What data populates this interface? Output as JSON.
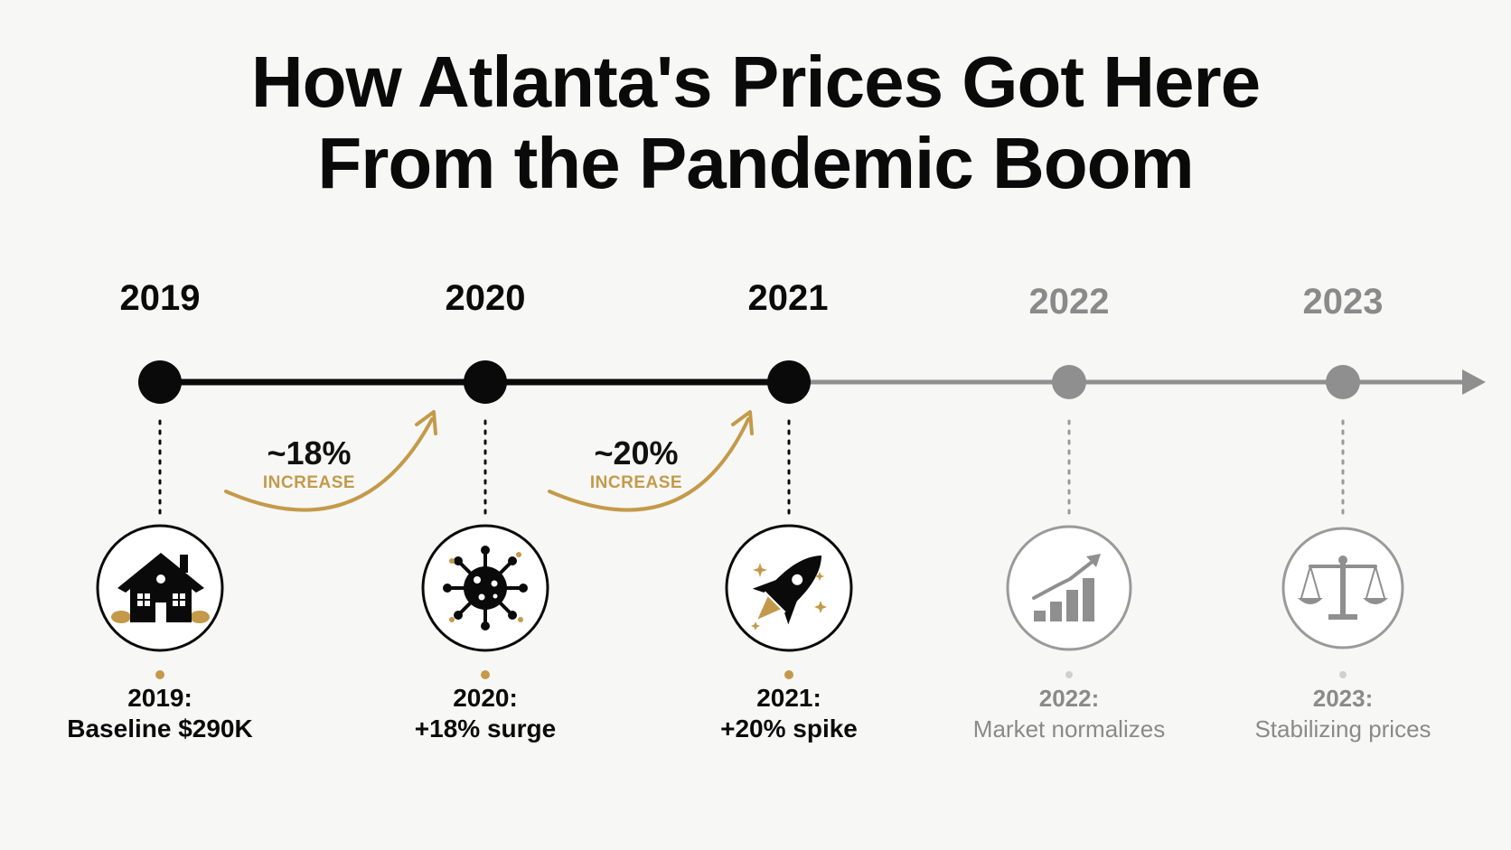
{
  "title": {
    "line1": "How Atlanta's Prices Got Here",
    "line2": "From the Pandemic Boom"
  },
  "colors": {
    "active": "#0a0a0a",
    "future": "#8f8f8f",
    "accent": "#c49a4a"
  },
  "milestones": [
    {
      "year": "2019",
      "state": "past",
      "icon": "house-icon",
      "caption_year": "2019:",
      "caption": "Baseline $290K"
    },
    {
      "year": "2020",
      "state": "past",
      "icon": "virus-icon",
      "caption_year": "2020:",
      "caption": "+18% surge"
    },
    {
      "year": "2021",
      "state": "past",
      "icon": "rocket-icon",
      "caption_year": "2021:",
      "caption": "+20% spike"
    },
    {
      "year": "2022",
      "state": "future",
      "icon": "rising-chart-icon",
      "caption_year": "2022:",
      "caption": "Market normalizes"
    },
    {
      "year": "2023",
      "state": "future",
      "icon": "balance-scale-icon",
      "caption_year": "2023:",
      "caption": "Stabilizing prices"
    }
  ],
  "increases": [
    {
      "value": "~18%",
      "label": "INCREASE"
    },
    {
      "value": "~20%",
      "label": "INCREASE"
    }
  ]
}
